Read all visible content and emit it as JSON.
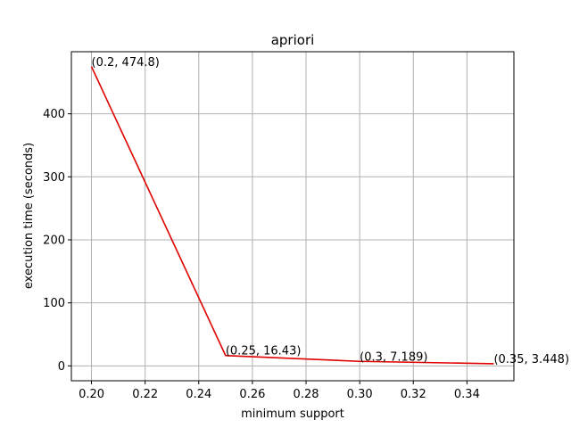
{
  "chart_data": {
    "type": "line",
    "title": "apriori",
    "xlabel": "minimum support",
    "ylabel": "execution time (seconds)",
    "xlim": [
      0.1925,
      0.3575
    ],
    "ylim": [
      -23.57,
      498.5
    ],
    "x_ticks": [
      0.2,
      0.22,
      0.24,
      0.26,
      0.28,
      0.3,
      0.32,
      0.34
    ],
    "x_tick_labels": [
      "0.20",
      "0.22",
      "0.24",
      "0.26",
      "0.28",
      "0.30",
      "0.32",
      "0.34"
    ],
    "y_ticks": [
      0,
      100,
      200,
      300,
      400
    ],
    "y_tick_labels": [
      "0",
      "100",
      "200",
      "300",
      "400"
    ],
    "grid": true,
    "legend": "none",
    "series": [
      {
        "color": "#e00000",
        "x": [
          0.2,
          0.25,
          0.3,
          0.35
        ],
        "y": [
          474.8,
          16.43,
          7.189,
          3.448
        ]
      }
    ],
    "annotations": [
      "(0.2, 474.8)",
      "(0.25, 16.43)",
      "(0.3, 7.189)",
      "(0.35, 3.448)"
    ]
  }
}
